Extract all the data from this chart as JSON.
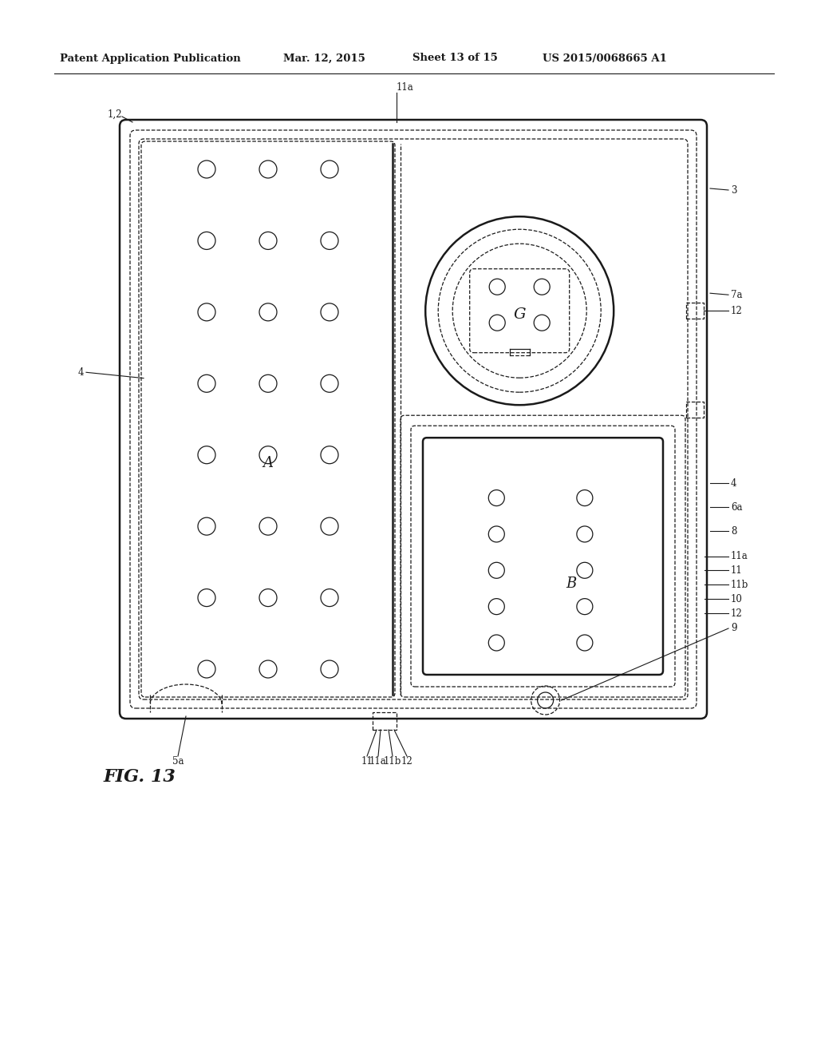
{
  "bg_color": "#ffffff",
  "line_color": "#1a1a1a",
  "header_text": "Patent Application Publication",
  "header_date": "Mar. 12, 2015",
  "header_sheet": "Sheet 13 of 15",
  "header_patent": "US 2015/0068665 A1",
  "fig_label": "FIG. 13",
  "label_1_2": "1,2",
  "label_3": "3",
  "label_4_left": "4",
  "label_4_right": "4",
  "label_7a": "7a",
  "label_12_top": "12",
  "label_12_bot": "12",
  "label_6a": "6a",
  "label_8": "8",
  "label_11": "11",
  "label_11a_top": "11a",
  "label_11a_bot": "11a",
  "label_11b_right": "11b",
  "label_11b_bot": "11b",
  "label_10": "10",
  "label_9": "9",
  "label_5a": "5a",
  "label_A": "A",
  "label_B": "B",
  "label_G": "G",
  "label_11_bot": "11"
}
